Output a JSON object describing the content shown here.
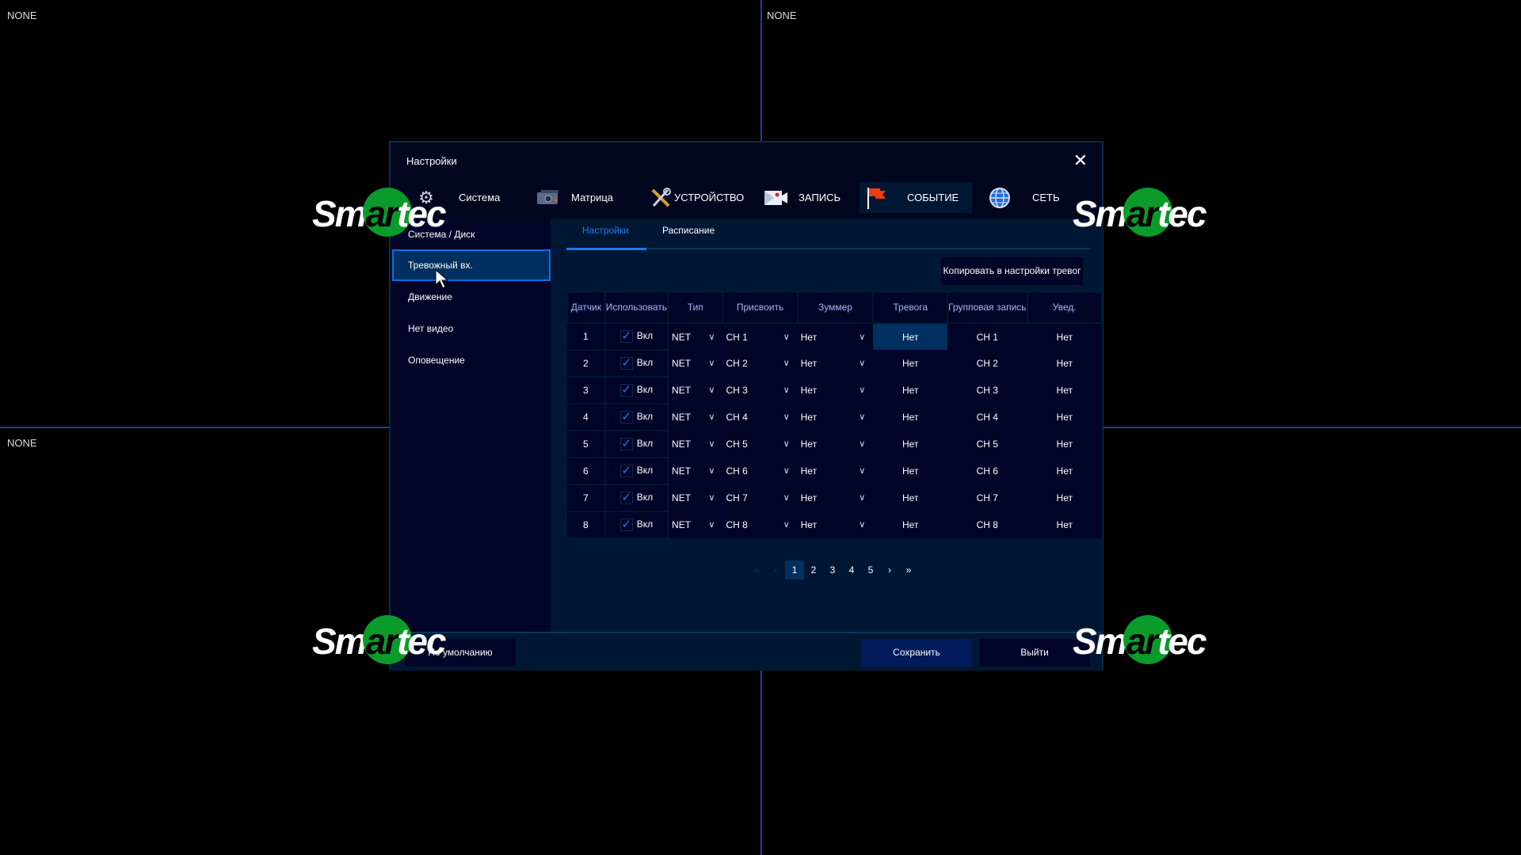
{
  "background": {
    "channel_labels": [
      "NONE",
      "NONE",
      "NONE"
    ],
    "logo_text": "Smartec"
  },
  "dialog": {
    "title": "Настройки"
  },
  "tabs": [
    {
      "label": "Система",
      "icon": "gear-icon"
    },
    {
      "label": "Матрица",
      "icon": "camera-icon"
    },
    {
      "label": "УСТРОЙСТВО",
      "icon": "tools-icon"
    },
    {
      "label": "ЗАПИСЬ",
      "icon": "video-camera-icon"
    },
    {
      "label": "СОБЫТИЕ",
      "icon": "flag-icon",
      "active": true
    },
    {
      "label": "СЕТЬ",
      "icon": "globe-icon"
    }
  ],
  "sidebar": {
    "items": [
      "Система / Диск",
      "Тревожный вх.",
      "Движение",
      "Нет видео",
      "Оповещение"
    ],
    "selected": 1
  },
  "subtabs": [
    "Настройки",
    "Расписание"
  ],
  "copy_button": "Копировать в настройки тревог",
  "table": {
    "headers": [
      "Датчик",
      "Использовать",
      "Тип",
      "Присвоить",
      "Зуммер",
      "Тревога",
      "Групповая запись",
      "Увед."
    ],
    "rows": [
      {
        "n": "1",
        "use": "Вкл",
        "type": "NET",
        "assign": "CH 1",
        "buzzer": "Нет",
        "alarm": "Нет",
        "group": "CH 1",
        "notify": "Нет"
      },
      {
        "n": "2",
        "use": "Вкл",
        "type": "NET",
        "assign": "CH 2",
        "buzzer": "Нет",
        "alarm": "Нет",
        "group": "CH 2",
        "notify": "Нет"
      },
      {
        "n": "3",
        "use": "Вкл",
        "type": "NET",
        "assign": "CH 3",
        "buzzer": "Нет",
        "alarm": "Нет",
        "group": "CH 3",
        "notify": "Нет"
      },
      {
        "n": "4",
        "use": "Вкл",
        "type": "NET",
        "assign": "CH 4",
        "buzzer": "Нет",
        "alarm": "Нет",
        "group": "CH 4",
        "notify": "Нет"
      },
      {
        "n": "5",
        "use": "Вкл",
        "type": "NET",
        "assign": "CH 5",
        "buzzer": "Нет",
        "alarm": "Нет",
        "group": "CH 5",
        "notify": "Нет"
      },
      {
        "n": "6",
        "use": "Вкл",
        "type": "NET",
        "assign": "CH 6",
        "buzzer": "Нет",
        "alarm": "Нет",
        "group": "CH 6",
        "notify": "Нет"
      },
      {
        "n": "7",
        "use": "Вкл",
        "type": "NET",
        "assign": "CH 7",
        "buzzer": "Нет",
        "alarm": "Нет",
        "group": "CH 7",
        "notify": "Нет"
      },
      {
        "n": "8",
        "use": "Вкл",
        "type": "NET",
        "assign": "CH 8",
        "buzzer": "Нет",
        "alarm": "Нет",
        "group": "CH 8",
        "notify": "Нет"
      }
    ]
  },
  "pagination": {
    "pages": [
      "1",
      "2",
      "3",
      "4",
      "5"
    ],
    "current": "1"
  },
  "footer": {
    "default": "По умолчанию",
    "save": "Сохранить",
    "exit": "Выйти"
  },
  "colors": {
    "accent": "#1a7bf0",
    "selected": "#00305f",
    "logo_green": "#0a9b2a",
    "flag": "#f03a10"
  }
}
